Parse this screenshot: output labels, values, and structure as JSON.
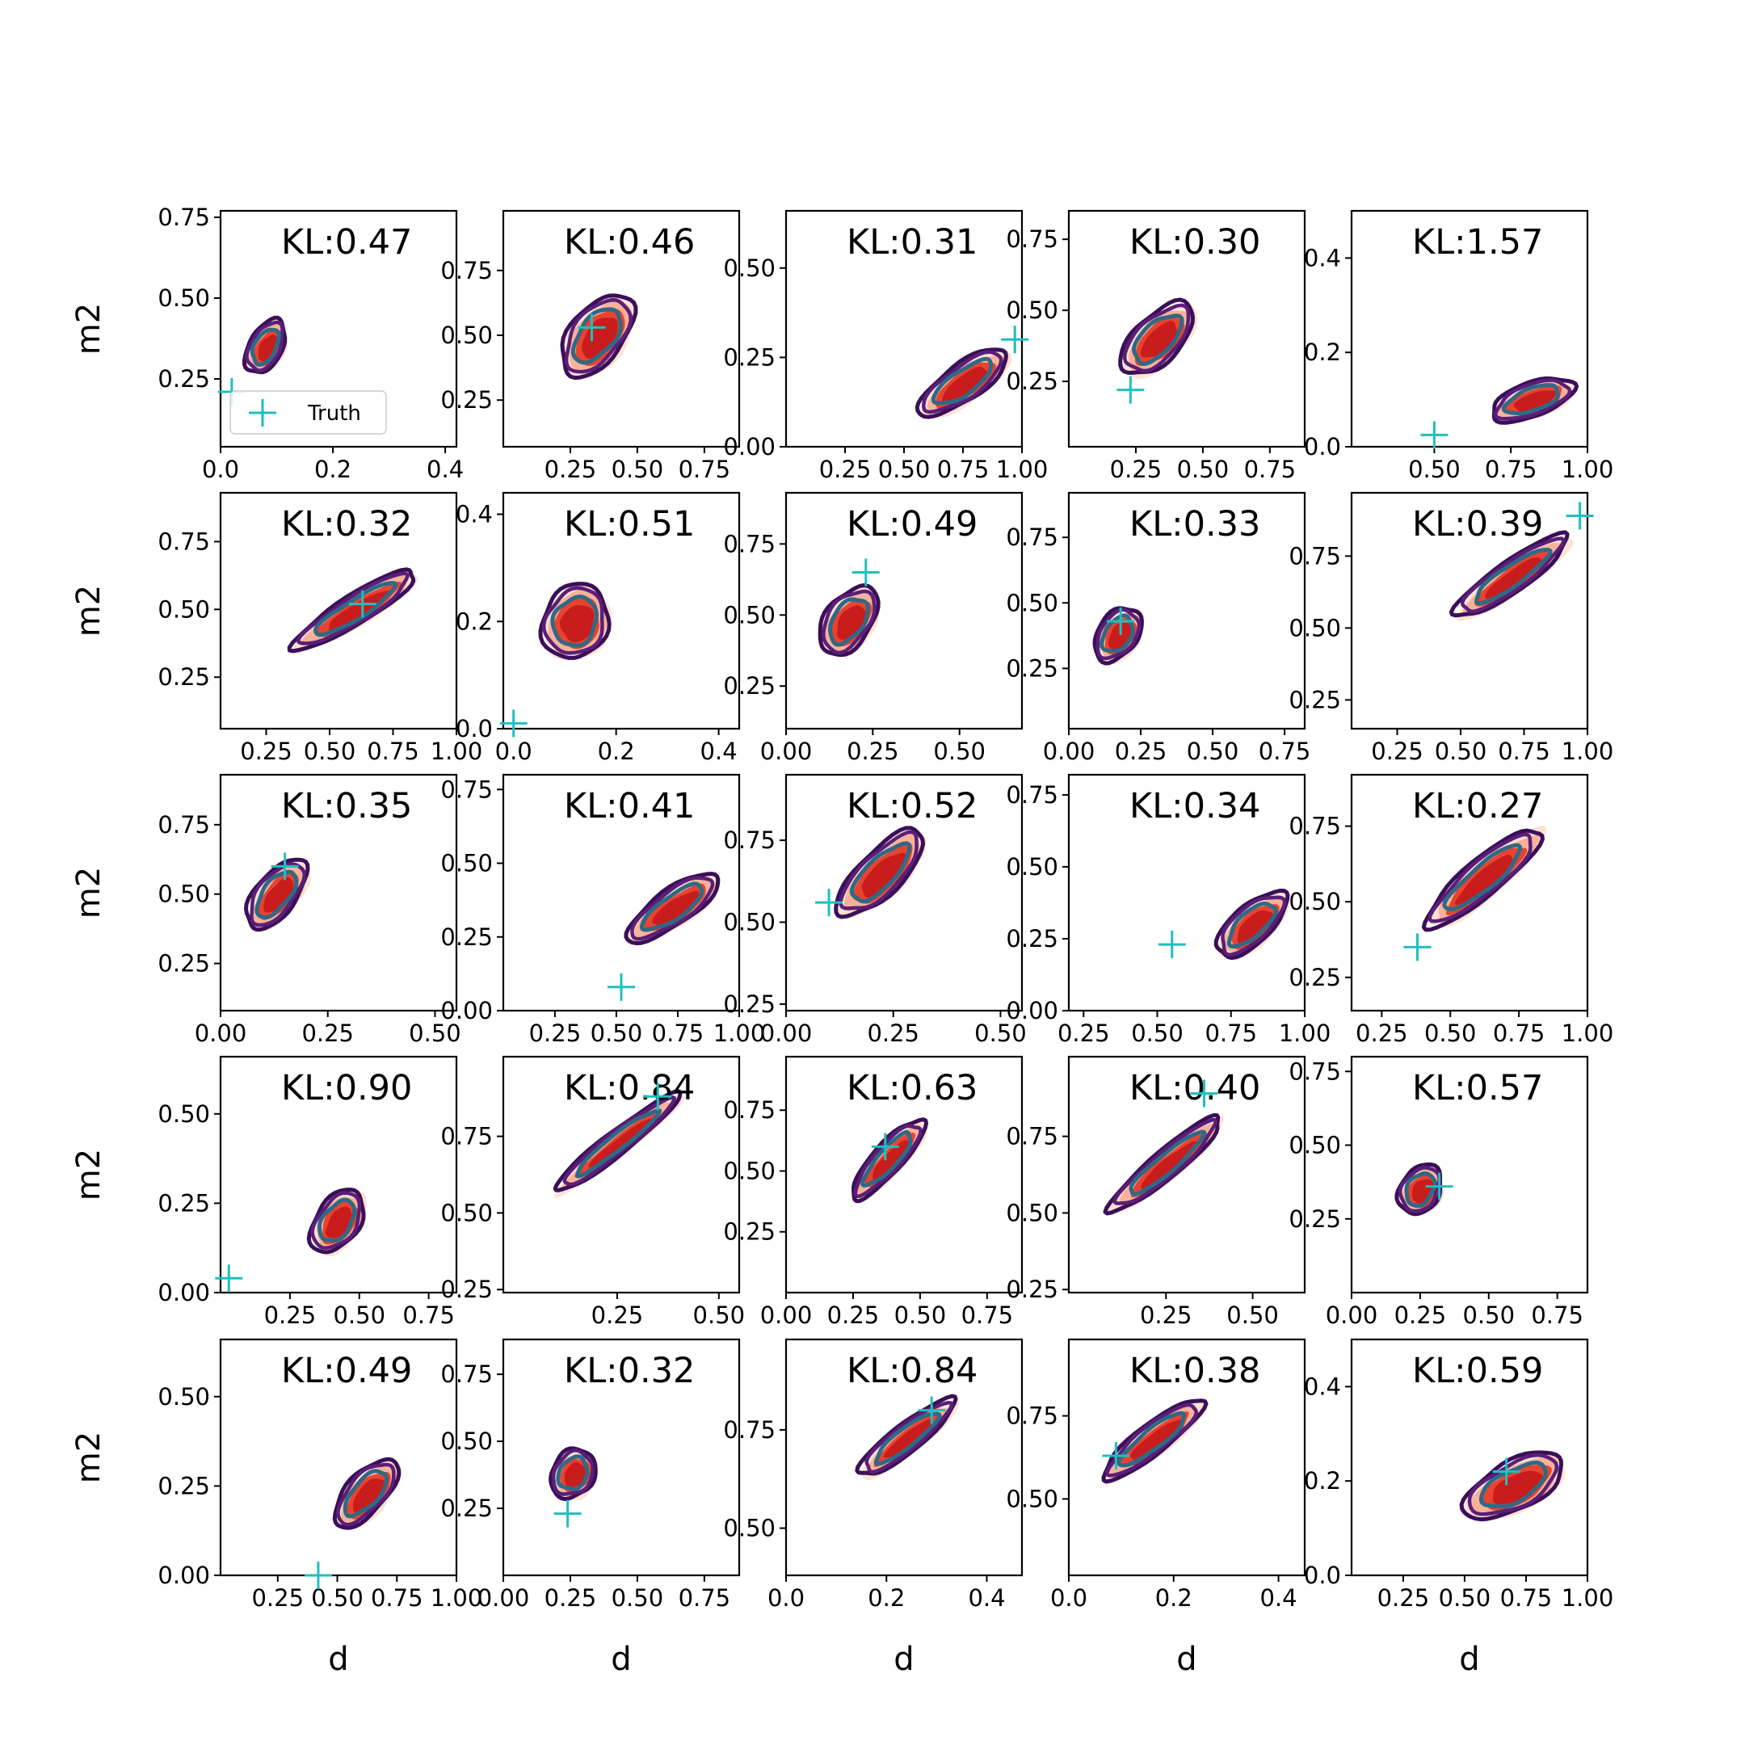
{
  "figure": {
    "xlabel": "d",
    "ylabel": "m2",
    "legend_label": "Truth"
  },
  "colors": {
    "fill_outer": "#fde2d6",
    "fill_mid": "#f8b29a",
    "fill_inner": "#e8432f",
    "fill_core": "#c91c1c",
    "contour_outer": "#3b0f58",
    "contour_mid": "#5a1f78",
    "contour_inner": "#2e6a86",
    "truth": "#1fbfbf"
  },
  "chart_data": [
    {
      "type": "contour",
      "title": "KL:0.47",
      "xticks": [
        "0.0",
        "0.2",
        "0.4"
      ],
      "xtick_values": [
        0,
        0.2,
        0.4
      ],
      "xlim": [
        0,
        0.42
      ],
      "yticks": [
        "0.25",
        "0.50",
        "0.75"
      ],
      "ytick_values": [
        0.25,
        0.5,
        0.75
      ],
      "ylim": [
        0.04,
        0.77
      ],
      "truth": [
        0.02,
        0.21
      ],
      "posterior": {
        "center": [
          0.08,
          0.35
        ],
        "spread": [
          0.07,
          0.17
        ],
        "angle": 62
      },
      "legend": true
    },
    {
      "type": "contour",
      "title": "KL:0.46",
      "xticks": [
        "0.25",
        "0.50",
        "0.75"
      ],
      "xtick_values": [
        0.25,
        0.5,
        0.75
      ],
      "xlim": [
        0,
        0.88
      ],
      "yticks": [
        "0.25",
        "0.50",
        "0.75"
      ],
      "ytick_values": [
        0.25,
        0.5,
        0.75
      ],
      "ylim": [
        0.07,
        0.98
      ],
      "truth": [
        0.33,
        0.53
      ],
      "posterior": {
        "center": [
          0.35,
          0.5
        ],
        "spread": [
          0.24,
          0.34
        ],
        "angle": 52
      }
    },
    {
      "type": "contour",
      "title": "KL:0.31",
      "xticks": [
        "0.25",
        "0.50",
        "0.75",
        "1.00"
      ],
      "xtick_values": [
        0.25,
        0.5,
        0.75,
        1
      ],
      "xlim": [
        0,
        1
      ],
      "yticks": [
        "0.00",
        "0.25",
        "0.50"
      ],
      "ytick_values": [
        0,
        0.25,
        0.5
      ],
      "ylim": [
        0,
        0.66
      ],
      "truth": [
        0.97,
        0.3
      ],
      "posterior": {
        "center": [
          0.75,
          0.18
        ],
        "spread": [
          0.3,
          0.17
        ],
        "angle": 35
      }
    },
    {
      "type": "contour",
      "title": "KL:0.30",
      "xticks": [
        "0.25",
        "0.50",
        "0.75"
      ],
      "xtick_values": [
        0.25,
        0.5,
        0.75
      ],
      "xlim": [
        0,
        0.88
      ],
      "yticks": [
        "0.25",
        "0.50",
        "0.75"
      ],
      "ytick_values": [
        0.25,
        0.5,
        0.75
      ],
      "ylim": [
        0.02,
        0.85
      ],
      "truth": [
        0.23,
        0.22
      ],
      "posterior": {
        "center": [
          0.33,
          0.4
        ],
        "spread": [
          0.23,
          0.27
        ],
        "angle": 45
      }
    },
    {
      "type": "contour",
      "title": "KL:1.57",
      "xticks": [
        "0.50",
        "0.75",
        "1.00"
      ],
      "xtick_values": [
        0.5,
        0.75,
        1
      ],
      "xlim": [
        0.23,
        1
      ],
      "yticks": [
        "0.0",
        "0.2",
        "0.4"
      ],
      "ytick_values": [
        0,
        0.2,
        0.4
      ],
      "ylim": [
        0,
        0.5
      ],
      "truth": [
        0.5,
        0.025
      ],
      "posterior": {
        "center": [
          0.82,
          0.1
        ],
        "spread": [
          0.19,
          0.12
        ],
        "angle": 20
      }
    },
    {
      "type": "contour",
      "title": "KL:0.32",
      "xticks": [
        "0.25",
        "0.50",
        "0.75",
        "1.00"
      ],
      "xtick_values": [
        0.25,
        0.5,
        0.75,
        1
      ],
      "xlim": [
        0.07,
        1
      ],
      "yticks": [
        "0.25",
        "0.50",
        "0.75"
      ],
      "ytick_values": [
        0.25,
        0.5,
        0.75
      ],
      "ylim": [
        0.06,
        0.93
      ],
      "truth": [
        0.63,
        0.52
      ],
      "posterior": {
        "center": [
          0.6,
          0.5
        ],
        "spread": [
          0.38,
          0.18
        ],
        "angle": 32
      }
    },
    {
      "type": "contour",
      "title": "KL:0.51",
      "xticks": [
        "0.0",
        "0.2",
        "0.4"
      ],
      "xtick_values": [
        0,
        0.2,
        0.4
      ],
      "xlim": [
        -0.02,
        0.44
      ],
      "yticks": [
        "0.0",
        "0.2",
        "0.4"
      ],
      "ytick_values": [
        0,
        0.2,
        0.4
      ],
      "ylim": [
        0,
        0.44
      ],
      "truth": [
        0.0,
        0.01
      ],
      "posterior": {
        "center": [
          0.12,
          0.2
        ],
        "spread": [
          0.1,
          0.2
        ],
        "angle": 65
      }
    },
    {
      "type": "contour",
      "title": "KL:0.49",
      "xticks": [
        "0.00",
        "0.25",
        "0.50"
      ],
      "xtick_values": [
        0,
        0.25,
        0.5
      ],
      "xlim": [
        0,
        0.68
      ],
      "yticks": [
        "0.25",
        "0.50",
        "0.75"
      ],
      "ytick_values": [
        0.25,
        0.5,
        0.75
      ],
      "ylim": [
        0.1,
        0.93
      ],
      "truth": [
        0.23,
        0.65
      ],
      "posterior": {
        "center": [
          0.18,
          0.48
        ],
        "spread": [
          0.15,
          0.27
        ],
        "angle": 55
      }
    },
    {
      "type": "contour",
      "title": "KL:0.33",
      "xticks": [
        "0.00",
        "0.25",
        "0.50",
        "0.75"
      ],
      "xtick_values": [
        0,
        0.25,
        0.5,
        0.75
      ],
      "xlim": [
        0,
        0.82
      ],
      "yticks": [
        "0.25",
        "0.50",
        "0.75"
      ],
      "ytick_values": [
        0.25,
        0.5,
        0.75
      ],
      "ylim": [
        0.02,
        0.92
      ],
      "truth": [
        0.18,
        0.43
      ],
      "posterior": {
        "center": [
          0.17,
          0.38
        ],
        "spread": [
          0.14,
          0.25
        ],
        "angle": 55
      }
    },
    {
      "type": "contour",
      "title": "KL:0.39",
      "xticks": [
        "0.25",
        "0.50",
        "0.75",
        "1.00"
      ],
      "xtick_values": [
        0.25,
        0.5,
        0.75,
        1
      ],
      "xlim": [
        0.07,
        1
      ],
      "yticks": [
        "0.25",
        "0.50",
        "0.75"
      ],
      "ytick_values": [
        0.25,
        0.5,
        0.75
      ],
      "ylim": [
        0.15,
        0.97
      ],
      "truth": [
        0.97,
        0.89
      ],
      "posterior": {
        "center": [
          0.7,
          0.68
        ],
        "spread": [
          0.36,
          0.18
        ],
        "angle": 35
      }
    },
    {
      "type": "contour",
      "title": "KL:0.35",
      "xticks": [
        "0.00",
        "0.25",
        "0.50"
      ],
      "xtick_values": [
        0,
        0.25,
        0.5
      ],
      "xlim": [
        0,
        0.55
      ],
      "yticks": [
        "0.25",
        "0.50",
        "0.75"
      ],
      "ytick_values": [
        0.25,
        0.5,
        0.75
      ],
      "ylim": [
        0.08,
        0.93
      ],
      "truth": [
        0.15,
        0.6
      ],
      "posterior": {
        "center": [
          0.13,
          0.5
        ],
        "spread": [
          0.13,
          0.24
        ],
        "angle": 52
      }
    },
    {
      "type": "contour",
      "title": "KL:0.41",
      "xticks": [
        "0.25",
        "0.50",
        "0.75",
        "1.00"
      ],
      "xtick_values": [
        0.25,
        0.5,
        0.75,
        1
      ],
      "xlim": [
        0.04,
        1
      ],
      "yticks": [
        "0.00",
        "0.25",
        "0.50",
        "0.75"
      ],
      "ytick_values": [
        0,
        0.25,
        0.5,
        0.75
      ],
      "ylim": [
        0,
        0.8
      ],
      "truth": [
        0.52,
        0.08
      ],
      "posterior": {
        "center": [
          0.73,
          0.35
        ],
        "spread": [
          0.3,
          0.2
        ],
        "angle": 35
      }
    },
    {
      "type": "contour",
      "title": "KL:0.52",
      "xticks": [
        "0.00",
        "0.25",
        "0.50"
      ],
      "xtick_values": [
        0,
        0.25,
        0.5
      ],
      "xlim": [
        0,
        0.55
      ],
      "yticks": [
        "0.25",
        "0.50",
        "0.75"
      ],
      "ytick_values": [
        0.25,
        0.5,
        0.75
      ],
      "ylim": [
        0.23,
        0.95
      ],
      "truth": [
        0.1,
        0.56
      ],
      "posterior": {
        "center": [
          0.22,
          0.65
        ],
        "spread": [
          0.18,
          0.22
        ],
        "angle": 45
      }
    },
    {
      "type": "contour",
      "title": "KL:0.34",
      "xticks": [
        "0.25",
        "0.50",
        "0.75",
        "1.00"
      ],
      "xtick_values": [
        0.25,
        0.5,
        0.75,
        1
      ],
      "xlim": [
        0.2,
        1
      ],
      "yticks": [
        "0.00",
        "0.25",
        "0.50",
        "0.75"
      ],
      "ytick_values": [
        0,
        0.25,
        0.5,
        0.75
      ],
      "ylim": [
        0,
        0.82
      ],
      "truth": [
        0.55,
        0.23
      ],
      "posterior": {
        "center": [
          0.82,
          0.3
        ],
        "spread": [
          0.2,
          0.22
        ],
        "angle": 42
      }
    },
    {
      "type": "contour",
      "title": "KL:0.27",
      "xticks": [
        "0.25",
        "0.50",
        "0.75",
        "1.00"
      ],
      "xtick_values": [
        0.25,
        0.5,
        0.75,
        1
      ],
      "xlim": [
        0.14,
        1
      ],
      "yticks": [
        "0.25",
        "0.50",
        "0.75"
      ],
      "ytick_values": [
        0.25,
        0.5,
        0.75
      ],
      "ylim": [
        0.14,
        0.92
      ],
      "truth": [
        0.38,
        0.35
      ],
      "posterior": {
        "center": [
          0.62,
          0.58
        ],
        "spread": [
          0.36,
          0.2
        ],
        "angle": 40
      }
    },
    {
      "type": "contour",
      "title": "KL:0.90",
      "xticks": [
        "0.25",
        "0.50",
        "0.75"
      ],
      "xtick_values": [
        0.25,
        0.5,
        0.75
      ],
      "xlim": [
        0,
        0.85
      ],
      "yticks": [
        "0.00",
        "0.25",
        "0.50"
      ],
      "ytick_values": [
        0,
        0.25,
        0.5
      ],
      "ylim": [
        0,
        0.66
      ],
      "truth": [
        0.03,
        0.04
      ],
      "posterior": {
        "center": [
          0.42,
          0.2
        ],
        "spread": [
          0.17,
          0.2
        ],
        "angle": 55
      }
    },
    {
      "type": "contour",
      "title": "KL:0.84",
      "xticks": [
        "0.25",
        "0.50"
      ],
      "xtick_values": [
        0.25,
        0.5
      ],
      "xlim": [
        -0.03,
        0.55
      ],
      "yticks": [
        "0.25",
        "0.50",
        "0.75"
      ],
      "ytick_values": [
        0.25,
        0.5,
        0.75
      ],
      "ylim": [
        0.24,
        1.01
      ],
      "truth": [
        0.35,
        0.88
      ],
      "posterior": {
        "center": [
          0.25,
          0.73
        ],
        "spread": [
          0.26,
          0.12
        ],
        "angle": 38
      }
    },
    {
      "type": "contour",
      "title": "KL:0.63",
      "xticks": [
        "0.00",
        "0.25",
        "0.50",
        "0.75"
      ],
      "xtick_values": [
        0,
        0.25,
        0.5,
        0.75
      ],
      "xlim": [
        0,
        0.88
      ],
      "yticks": [
        "0.25",
        "0.50",
        "0.75"
      ],
      "ytick_values": [
        0.25,
        0.5,
        0.75
      ],
      "ylim": [
        0,
        0.97
      ],
      "truth": [
        0.37,
        0.6
      ],
      "posterior": {
        "center": [
          0.38,
          0.55
        ],
        "spread": [
          0.26,
          0.2
        ],
        "angle": 48
      }
    },
    {
      "type": "contour",
      "title": "KL:0.40",
      "xticks": [
        "0.25",
        "0.50"
      ],
      "xtick_values": [
        0.25,
        0.5
      ],
      "xlim": [
        -0.03,
        0.65
      ],
      "yticks": [
        "0.25",
        "0.50",
        "0.75"
      ],
      "ytick_values": [
        0.25,
        0.5,
        0.75
      ],
      "ylim": [
        0.24,
        1.01
      ],
      "truth": [
        0.36,
        0.89
      ],
      "posterior": {
        "center": [
          0.25,
          0.66
        ],
        "spread": [
          0.28,
          0.15
        ],
        "angle": 40
      }
    },
    {
      "type": "contour",
      "title": "KL:0.57",
      "xticks": [
        "0.00",
        "0.25",
        "0.50",
        "0.75"
      ],
      "xtick_values": [
        0,
        0.25,
        0.5,
        0.75
      ],
      "xlim": [
        0,
        0.86
      ],
      "yticks": [
        "0.25",
        "0.50",
        "0.75"
      ],
      "ytick_values": [
        0.25,
        0.5,
        0.75
      ],
      "ylim": [
        0,
        0.8
      ],
      "truth": [
        0.32,
        0.36
      ],
      "posterior": {
        "center": [
          0.25,
          0.35
        ],
        "spread": [
          0.13,
          0.22
        ],
        "angle": 58
      }
    },
    {
      "type": "contour",
      "title": "KL:0.49",
      "xticks": [
        "0.25",
        "0.50",
        "0.75",
        "1.00"
      ],
      "xtick_values": [
        0.25,
        0.5,
        0.75,
        1
      ],
      "xlim": [
        0.01,
        1
      ],
      "yticks": [
        "0.00",
        "0.25",
        "0.50"
      ],
      "ytick_values": [
        0,
        0.25,
        0.5
      ],
      "ylim": [
        0,
        0.66
      ],
      "truth": [
        0.42,
        0.0
      ],
      "posterior": {
        "center": [
          0.62,
          0.23
        ],
        "spread": [
          0.24,
          0.18
        ],
        "angle": 48
      }
    },
    {
      "type": "contour",
      "title": "KL:0.32",
      "xticks": [
        "0.00",
        "0.25",
        "0.50",
        "0.75"
      ],
      "xtick_values": [
        0,
        0.25,
        0.5,
        0.75
      ],
      "xlim": [
        0,
        0.88
      ],
      "yticks": [
        "0.25",
        "0.50",
        "0.75"
      ],
      "ytick_values": [
        0.25,
        0.5,
        0.75
      ],
      "ylim": [
        0,
        0.88
      ],
      "truth": [
        0.24,
        0.23
      ],
      "posterior": {
        "center": [
          0.26,
          0.38
        ],
        "spread": [
          0.13,
          0.26
        ],
        "angle": 58
      }
    },
    {
      "type": "contour",
      "title": "KL:0.84",
      "xticks": [
        "0.0",
        "0.2",
        "0.4"
      ],
      "xtick_values": [
        0,
        0.2,
        0.4
      ],
      "xlim": [
        0,
        0.47
      ],
      "yticks": [
        "0.50",
        "0.75"
      ],
      "ytick_values": [
        0.5,
        0.75
      ],
      "ylim": [
        0.38,
        0.98
      ],
      "truth": [
        0.29,
        0.8
      ],
      "posterior": {
        "center": [
          0.24,
          0.73
        ],
        "spread": [
          0.16,
          0.12
        ],
        "angle": 38
      }
    },
    {
      "type": "contour",
      "title": "KL:0.38",
      "xticks": [
        "0.0",
        "0.2",
        "0.4"
      ],
      "xtick_values": [
        0,
        0.2,
        0.4
      ],
      "xlim": [
        0,
        0.45
      ],
      "yticks": [
        "0.50",
        "0.75"
      ],
      "ytick_values": [
        0.5,
        0.75
      ],
      "ylim": [
        0.27,
        0.98
      ],
      "truth": [
        0.09,
        0.63
      ],
      "posterior": {
        "center": [
          0.16,
          0.68
        ],
        "spread": [
          0.16,
          0.15
        ],
        "angle": 38
      }
    },
    {
      "type": "contour",
      "title": "KL:0.59",
      "xticks": [
        "0.25",
        "0.50",
        "0.75",
        "1.00"
      ],
      "xtick_values": [
        0.25,
        0.5,
        0.75,
        1
      ],
      "xlim": [
        0.04,
        1
      ],
      "yticks": [
        "0.0",
        "0.2",
        "0.4"
      ],
      "ytick_values": [
        0,
        0.2,
        0.4
      ],
      "ylim": [
        0,
        0.5
      ],
      "truth": [
        0.67,
        0.22
      ],
      "posterior": {
        "center": [
          0.7,
          0.19
        ],
        "spread": [
          0.3,
          0.17
        ],
        "angle": 28
      }
    }
  ]
}
